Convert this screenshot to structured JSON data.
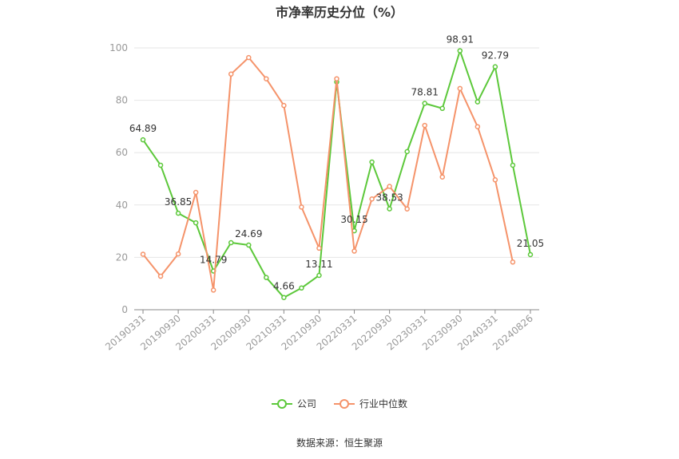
{
  "chart_data": {
    "type": "line",
    "title": "市净率历史分位（%）",
    "categories": [
      "20190331",
      "20190630",
      "20190930",
      "20191231",
      "20200331",
      "20200630",
      "20200930",
      "20201231",
      "20210331",
      "20210630",
      "20210930",
      "20211231",
      "20220331",
      "20220630",
      "20220930",
      "20221231",
      "20230331",
      "20230630",
      "20230930",
      "20231231",
      "20240331",
      "20240630",
      "20240826"
    ],
    "x_tick_labels": [
      "20190331",
      "20190930",
      "20200331",
      "20200930",
      "20210331",
      "20210930",
      "20220331",
      "20220930",
      "20230331",
      "20230930",
      "20240331",
      "20240826"
    ],
    "y_ticks": [
      0,
      20,
      40,
      60,
      80,
      100
    ],
    "ylim": [
      0,
      100
    ],
    "grid": true,
    "legend_position": "bottom",
    "series": [
      {
        "name": "公司",
        "color": "#5cc83a",
        "values": [
          64.89,
          55.2,
          36.85,
          33.2,
          14.79,
          25.6,
          24.69,
          12.3,
          4.66,
          8.3,
          13.11,
          87.0,
          30.15,
          56.4,
          38.53,
          60.4,
          78.81,
          76.9,
          98.91,
          79.4,
          92.79,
          55.2,
          21.05
        ],
        "labels": {
          "0": "64.89",
          "2": "36.85",
          "4": "14.79",
          "6": "24.69",
          "8": "4.66",
          "10": "13.11",
          "12": "30.15",
          "14": "38.53",
          "16": "78.81",
          "18": "98.91",
          "20": "92.79",
          "22": "21.05"
        }
      },
      {
        "name": "行业中位数",
        "color": "#f5936a",
        "values": [
          21.2,
          12.8,
          21.3,
          44.8,
          7.5,
          90.0,
          96.3,
          88.2,
          78.0,
          39.2,
          23.5,
          88.2,
          22.4,
          42.3,
          47.1,
          38.5,
          70.4,
          50.7,
          84.5,
          69.9,
          49.6,
          18.2,
          null
        ]
      }
    ]
  },
  "source": "数据来源：恒生聚源"
}
